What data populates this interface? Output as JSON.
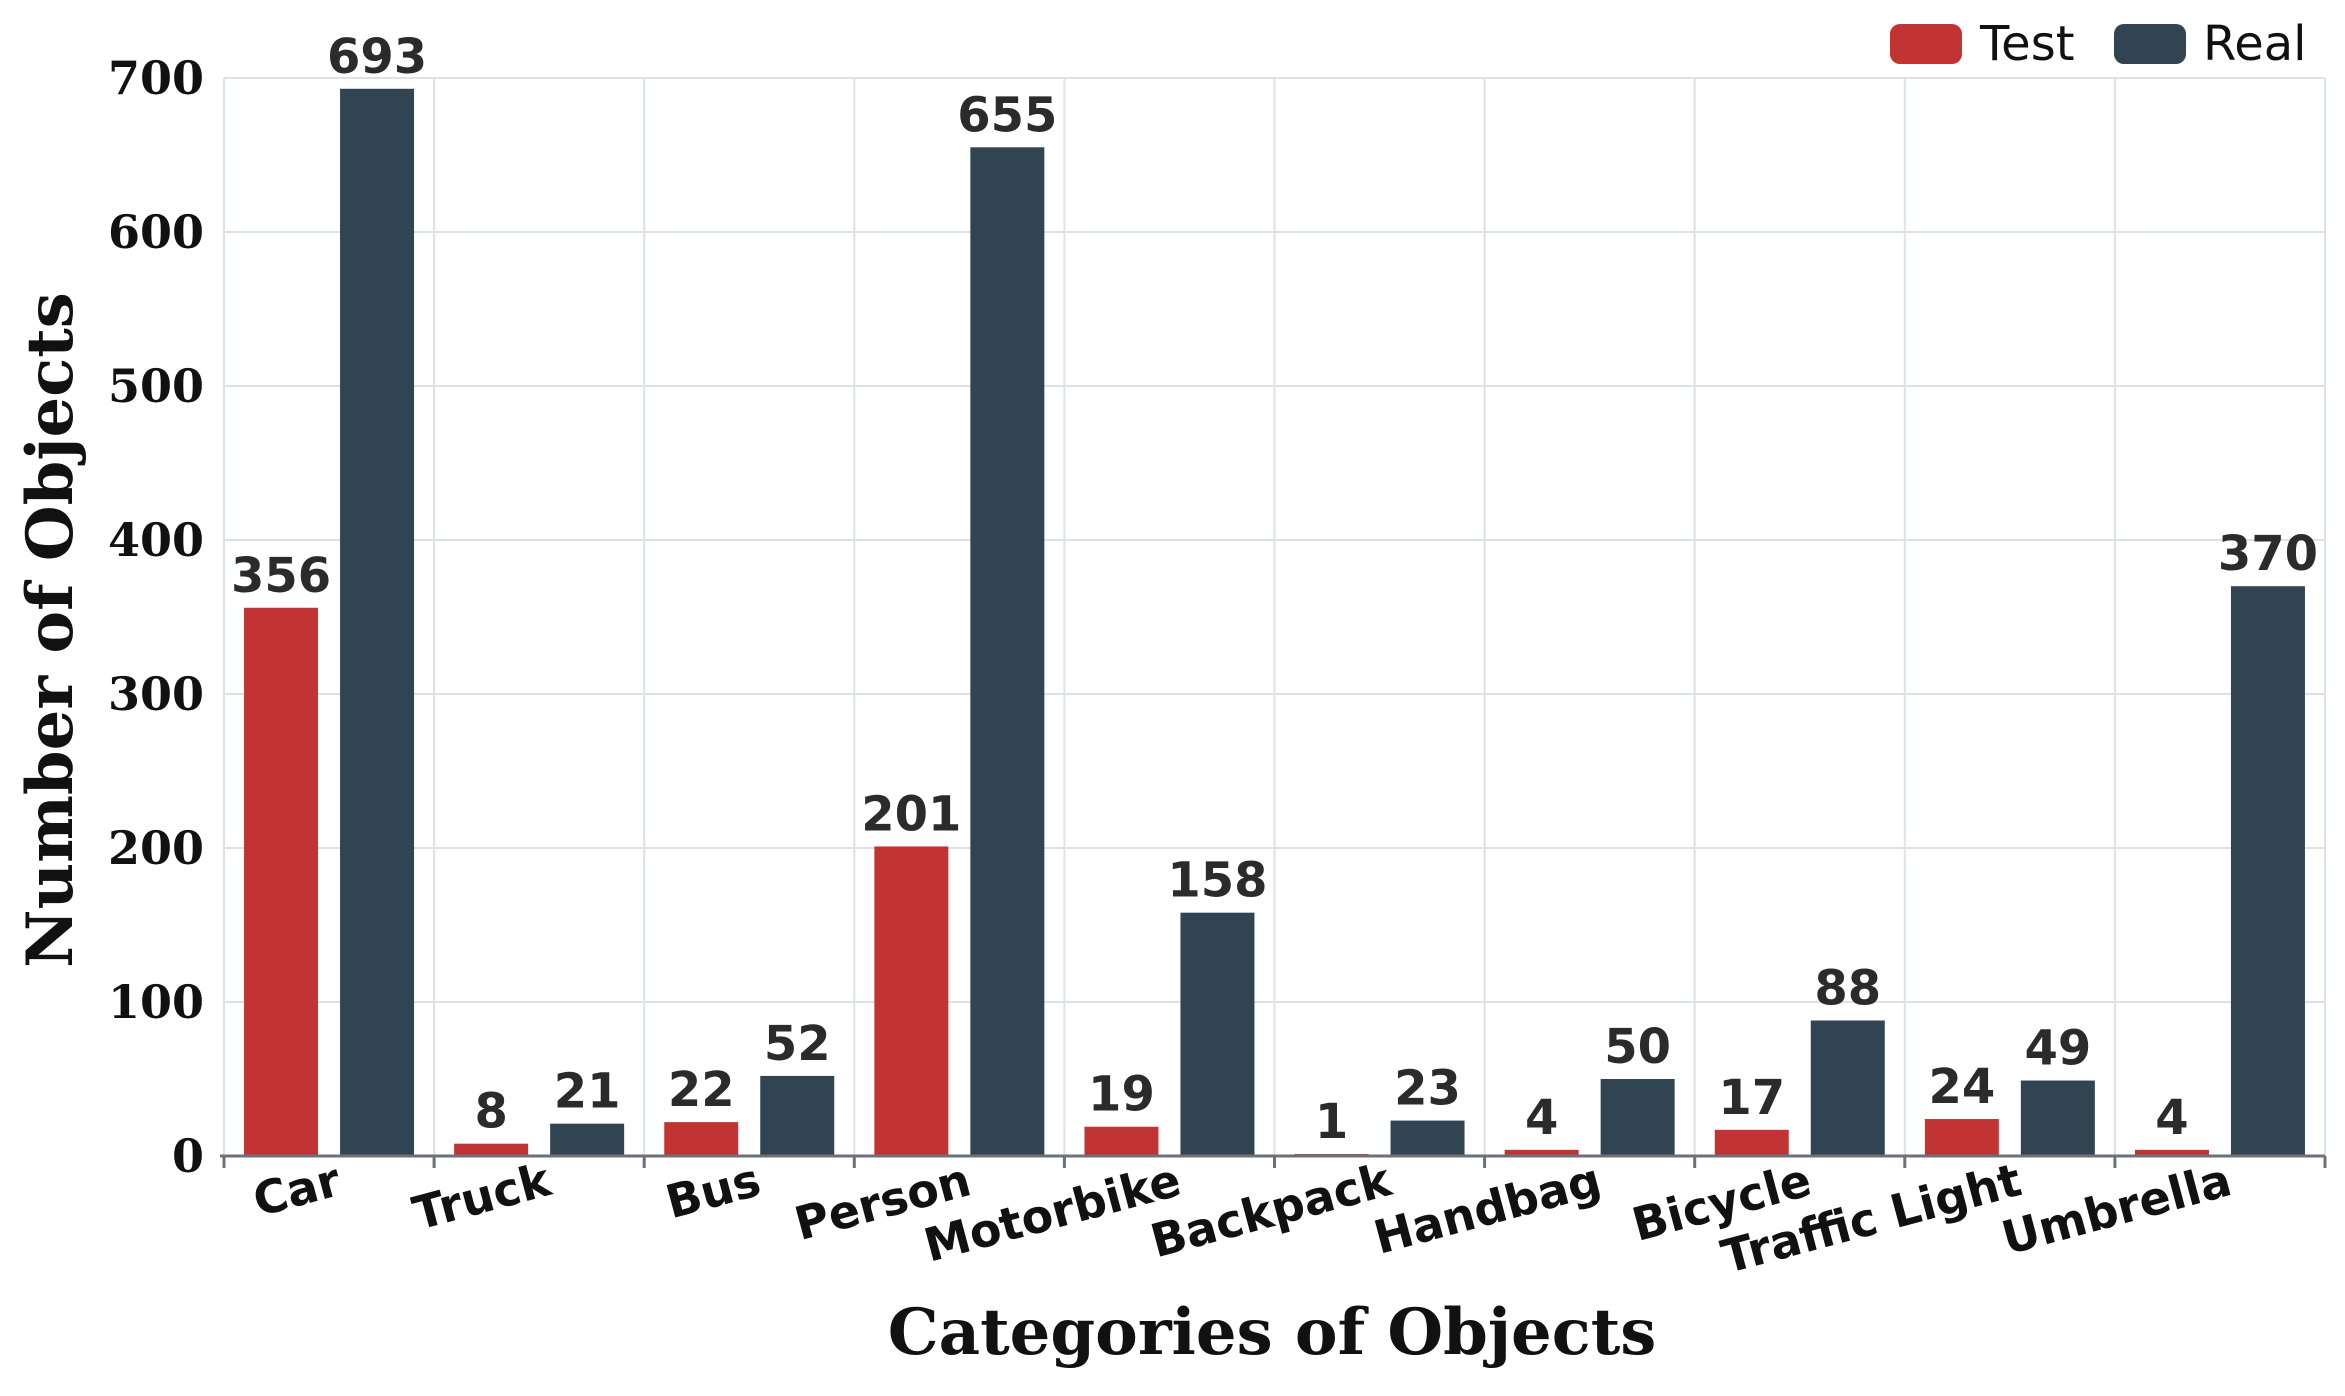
{
  "chart_data": {
    "type": "bar",
    "xlabel": "Categories of Objects",
    "ylabel": "Number of Objects",
    "categories": [
      "Car",
      "Truck",
      "Bus",
      "Person",
      "Motorbike",
      "Backpack",
      "Handbag",
      "Bicycle",
      "Traffic Light",
      "Umbrella"
    ],
    "series": [
      {
        "name": "Test",
        "color": "#c23333",
        "values": [
          356,
          8,
          22,
          201,
          19,
          1,
          4,
          17,
          24,
          4
        ]
      },
      {
        "name": "Real",
        "color": "#304452",
        "values": [
          693,
          21,
          52,
          655,
          158,
          23,
          50,
          88,
          49,
          370
        ]
      }
    ],
    "ylim": [
      0,
      700
    ],
    "yticks": [
      0,
      100,
      200,
      300,
      400,
      500,
      600,
      700
    ],
    "grid": true,
    "legend_position": "top-right",
    "data_labels": true
  }
}
